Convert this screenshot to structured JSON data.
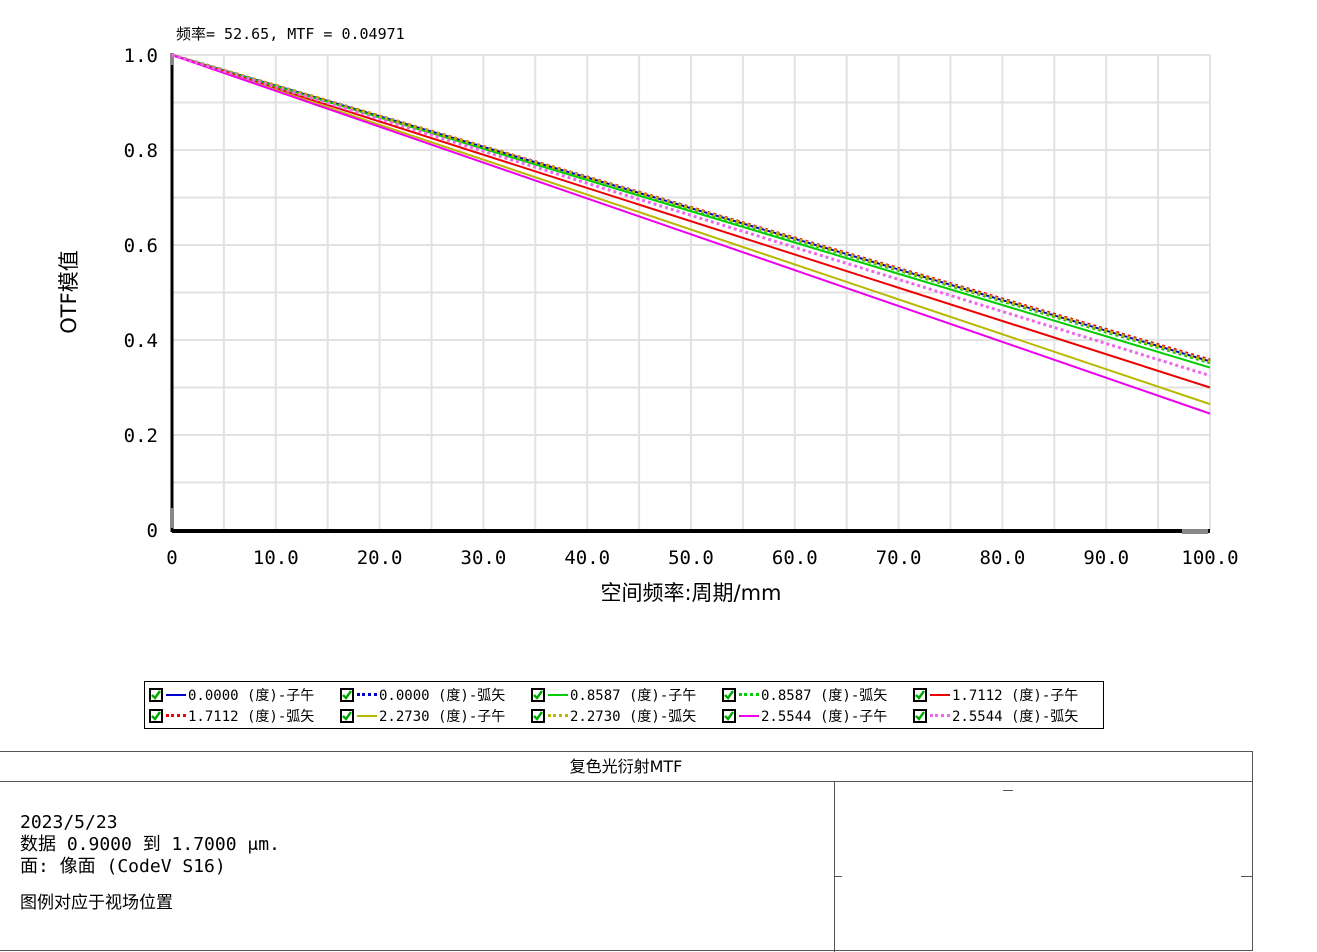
{
  "cursor_readout": "频率= 52.65, MTF = 0.04971",
  "chart_data": {
    "type": "line",
    "title": "",
    "xlabel": "空间频率:周期/mm",
    "ylabel": "OTF模值",
    "xlim": [
      0,
      100
    ],
    "ylim": [
      0,
      1.0
    ],
    "x_ticks": [
      "0",
      "10.0",
      "20.0",
      "30.0",
      "40.0",
      "50.0",
      "60.0",
      "70.0",
      "80.0",
      "90.0",
      "100.0"
    ],
    "y_ticks": [
      "0",
      "0.2",
      "0.4",
      "0.6",
      "0.8",
      "1.0"
    ],
    "grid": true,
    "legend_position": "bottom",
    "x": [
      0,
      100
    ],
    "series": [
      {
        "name": "0.0000 (度)-子午",
        "color": "#0000cc",
        "style": "solid",
        "values": [
          1.0,
          0.355
        ]
      },
      {
        "name": "0.0000 (度)-弧矢",
        "color": "#0000cc",
        "style": "dotted",
        "values": [
          1.0,
          0.355
        ]
      },
      {
        "name": "0.8587 (度)-子午",
        "color": "#00cc00",
        "style": "solid",
        "values": [
          1.0,
          0.342
        ]
      },
      {
        "name": "0.8587 (度)-弧矢",
        "color": "#00cc00",
        "style": "dotted",
        "values": [
          1.0,
          0.352
        ]
      },
      {
        "name": "1.7112 (度)-子午",
        "color": "#ee0000",
        "style": "solid",
        "values": [
          1.0,
          0.3
        ]
      },
      {
        "name": "1.7112 (度)-弧矢",
        "color": "#ee0000",
        "style": "dotted",
        "values": [
          1.0,
          0.358
        ]
      },
      {
        "name": "2.2730 (度)-子午",
        "color": "#b8b800",
        "style": "solid",
        "values": [
          1.0,
          0.265
        ]
      },
      {
        "name": "2.2730 (度)-弧矢",
        "color": "#b8b800",
        "style": "dotted",
        "values": [
          1.0,
          0.355
        ]
      },
      {
        "name": "2.5544 (度)-子午",
        "color": "#ee00ee",
        "style": "solid",
        "values": [
          1.0,
          0.245
        ]
      },
      {
        "name": "2.5544 (度)-弧矢",
        "color": "#ee66ee",
        "style": "dotted",
        "values": [
          1.0,
          0.325
        ]
      }
    ]
  },
  "info": {
    "title": "复色光衍射MTF",
    "date": "2023/5/23",
    "data_range": "数据 0.9000 到 1.7000 μm.",
    "surface": "面: 像面 (CodeV S16)",
    "legend_note": "图例对应于视场位置"
  }
}
